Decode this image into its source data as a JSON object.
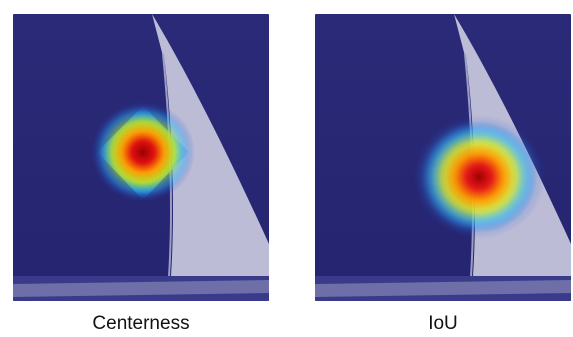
{
  "figure": {
    "panels": [
      {
        "caption": "Centerness",
        "map_type": "heatmap-overlay",
        "colors": {
          "background": "#29297a",
          "sail": "#cfcfe3",
          "hull": "#8888b8",
          "heat_peak": "#a30000",
          "heat_mid": "#ff9a00",
          "heat_outer": "#30b0ff"
        }
      },
      {
        "caption": "IoU",
        "map_type": "heatmap-overlay",
        "colors": {
          "background": "#29297a",
          "sail": "#cfcfe3",
          "hull": "#8888b8",
          "heat_peak": "#a30000",
          "heat_mid": "#ff9a00",
          "heat_outer": "#30b0ff"
        }
      }
    ]
  }
}
